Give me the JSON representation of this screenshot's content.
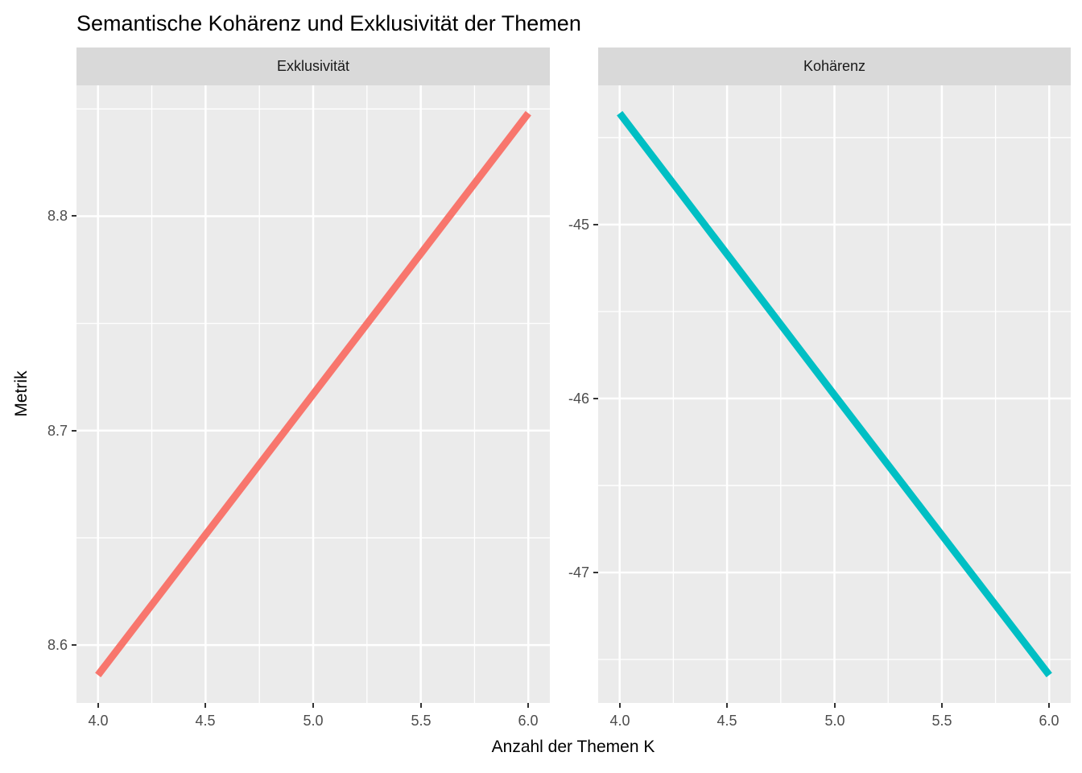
{
  "chart_data": {
    "type": "line",
    "title": "Semantische Kohärenz und Exklusivität der Themen",
    "xlabel": "Anzahl der Themen K",
    "ylabel": "Metrik",
    "xlim": [
      3.9,
      6.1
    ],
    "x_ticks": {
      "values": [
        4.0,
        4.5,
        5.0,
        5.5,
        6.0
      ],
      "labels": [
        "4.0",
        "4.5",
        "5.0",
        "5.5",
        "6.0"
      ]
    },
    "x_minor": [
      4.25,
      4.75,
      5.25,
      5.75
    ],
    "legend": "none",
    "grid": "on",
    "facets": [
      {
        "label": "Exklusivität",
        "series_color": "#F8766D",
        "x": [
          4,
          5,
          6
        ],
        "y": [
          8.586,
          8.717,
          8.848
        ],
        "ylim": [
          8.573,
          8.861
        ],
        "y_ticks": {
          "values": [
            8.8,
            8.7,
            8.6
          ],
          "labels": [
            "8.8",
            "8.7",
            "8.6"
          ]
        },
        "y_minor": [
          8.85,
          8.75,
          8.65
        ]
      },
      {
        "label": "Kohärenz",
        "series_color": "#00BFC4",
        "x": [
          4,
          5,
          6
        ],
        "y": [
          -44.36,
          -45.98,
          -47.59
        ],
        "ylim": [
          -47.75,
          -44.2
        ],
        "y_ticks": {
          "values": [
            -45,
            -46,
            -47
          ],
          "labels": [
            "-45",
            "-46",
            "-47"
          ]
        },
        "y_minor": [
          -44.5,
          -45.5,
          -46.5,
          -47.5
        ]
      }
    ],
    "colors": {
      "panel_bg": "#EBEBEB",
      "strip_bg": "#D9D9D9",
      "grid": "#FFFFFF",
      "tick_label": "#4D4D4D",
      "axis_title": "#000000",
      "tick_mark": "#333333"
    }
  }
}
